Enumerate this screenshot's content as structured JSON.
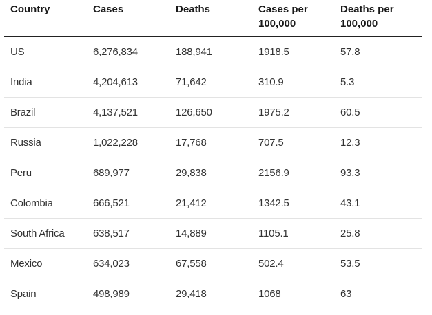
{
  "table": {
    "headers": [
      "Country",
      "Cases",
      "Deaths",
      "Cases per 100,000",
      "Deaths per 100,000"
    ],
    "rows": [
      [
        "US",
        "6,276,834",
        "188,941",
        "1918.5",
        "57.8"
      ],
      [
        "India",
        "4,204,613",
        "71,642",
        "310.9",
        "5.3"
      ],
      [
        "Brazil",
        "4,137,521",
        "126,650",
        "1975.2",
        "60.5"
      ],
      [
        "Russia",
        "1,022,228",
        "17,768",
        "707.5",
        "12.3"
      ],
      [
        "Peru",
        "689,977",
        "29,838",
        "2156.9",
        "93.3"
      ],
      [
        "Colombia",
        "666,521",
        "21,412",
        "1342.5",
        "43.1"
      ],
      [
        "South Africa",
        "638,517",
        "14,889",
        "1105.1",
        "25.8"
      ],
      [
        "Mexico",
        "634,023",
        "67,558",
        "502.4",
        "53.5"
      ],
      [
        "Spain",
        "498,989",
        "29,418",
        "1068",
        "63"
      ]
    ]
  }
}
